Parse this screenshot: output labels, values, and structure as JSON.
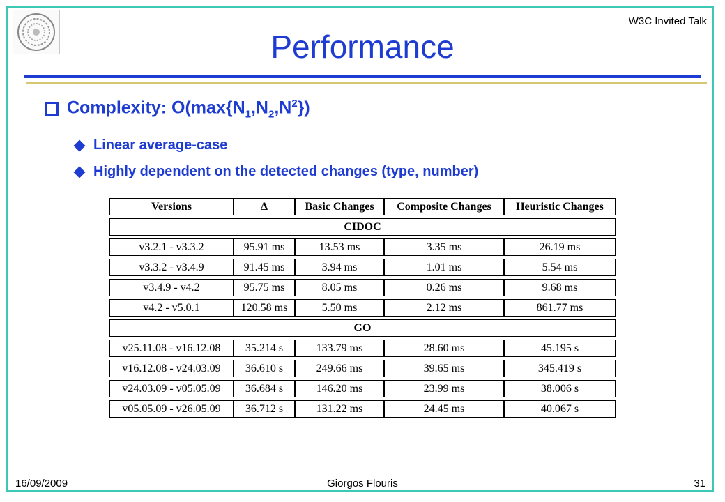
{
  "header": {
    "logo_icon": "university-seal-icon",
    "event": "W3C Invited Talk",
    "title": "Performance"
  },
  "bullets": {
    "main": "Complexity: O(max{N1,N2,N2})",
    "sub": [
      "Linear average-case",
      "Highly dependent on the detected changes (type, number)"
    ]
  },
  "table": {
    "headers": [
      "Versions",
      "Δ",
      "Basic Changes",
      "Composite Changes",
      "Heuristic Changes"
    ],
    "groups": [
      {
        "name": "CIDOC",
        "rows": [
          [
            "v3.2.1 - v3.3.2",
            "95.91 ms",
            "13.53 ms",
            "3.35 ms",
            "26.19 ms"
          ],
          [
            "v3.3.2 - v3.4.9",
            "91.45 ms",
            "3.94 ms",
            "1.01 ms",
            "5.54 ms"
          ],
          [
            "v3.4.9 - v4.2",
            "95.75 ms",
            "8.05 ms",
            "0.26 ms",
            "9.68 ms"
          ],
          [
            "v4.2 - v5.0.1",
            "120.58 ms",
            "5.50 ms",
            "2.12 ms",
            "861.77 ms"
          ]
        ]
      },
      {
        "name": "GO",
        "rows": [
          [
            "v25.11.08 - v16.12.08",
            "35.214 s",
            "133.79 ms",
            "28.60 ms",
            "45.195 s"
          ],
          [
            "v16.12.08 - v24.03.09",
            "36.610 s",
            "249.66 ms",
            "39.65 ms",
            "345.419 s"
          ],
          [
            "v24.03.09 - v05.05.09",
            "36.684 s",
            "146.20 ms",
            "23.99 ms",
            "38.006 s"
          ],
          [
            "v05.05.09 - v26.05.09",
            "36.712 s",
            "131.22 ms",
            "24.45 ms",
            "40.067 s"
          ]
        ]
      }
    ]
  },
  "footer": {
    "date": "16/09/2009",
    "author": "Giorgos Flouris",
    "page": "31"
  },
  "colors": {
    "accent": "#1e3cd2",
    "frame": "#3cc8b4",
    "rule_secondary": "#d6c870"
  }
}
